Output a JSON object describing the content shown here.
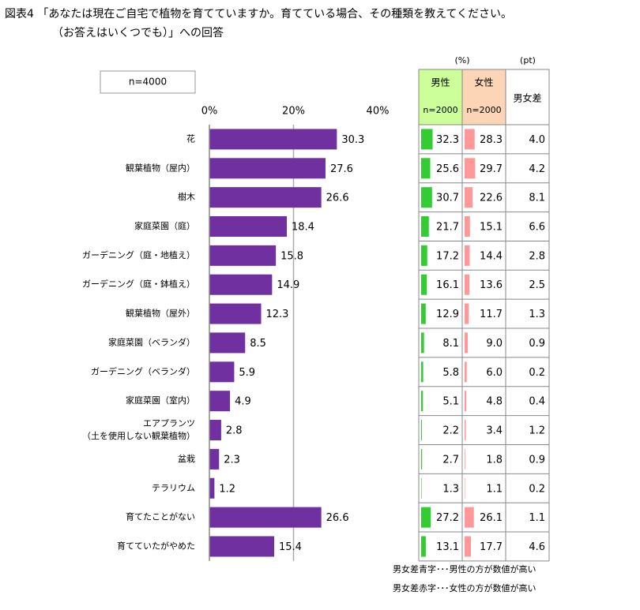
{
  "title": [
    "図表4 「あなたは現在ご自宅で植物を育てていますか。育てている場合、その種類を教えてください。",
    "（お答えはいくつでも）」への回答"
  ],
  "n_label": "n=4000",
  "chart_data": {
    "type": "bar",
    "orientation": "horizontal",
    "categories": [
      "花",
      "観葉植物（屋内）",
      "樹木",
      "家庭菜園（庭）",
      "ガーデニング（庭・地植え）",
      "ガーデニング（庭・鉢植え）",
      "観葉植物（屋外）",
      "家庭菜園（ベランダ）",
      "ガーデニング（ベランダ）",
      "家庭菜園（室内）",
      "エアプランツ\n（土を使用しない観葉植物）",
      "盆栽",
      "テラリウム",
      "育てたことがない",
      "育てていたがやめた"
    ],
    "values": [
      30.3,
      27.6,
      26.6,
      18.4,
      15.8,
      14.9,
      12.3,
      8.5,
      5.9,
      4.9,
      2.8,
      2.3,
      1.2,
      26.6,
      15.4
    ],
    "color": "#7030a0",
    "xlim": [
      0,
      40
    ],
    "xticks": [
      {
        "value": 0,
        "label": "0%"
      },
      {
        "value": 20,
        "label": "20%"
      },
      {
        "value": 40,
        "label": "40%"
      }
    ],
    "grid": true
  },
  "table": {
    "unit_pct": "(%)",
    "unit_pt": "(pt)",
    "columns": [
      {
        "name": "男性",
        "n": "n=2000",
        "color": "#33cc33",
        "bg": "#ccff99",
        "values": [
          32.3,
          25.6,
          30.7,
          21.7,
          17.2,
          16.1,
          12.9,
          8.1,
          5.8,
          5.1,
          2.2,
          2.7,
          1.3,
          27.2,
          13.1
        ],
        "value_labels": [
          "32.3",
          "25.6",
          "30.7",
          "21.7",
          "17.2",
          "16.1",
          "12.9",
          "8.1",
          "5.8",
          "5.1",
          "2.2",
          "2.7",
          "1.3",
          "27.2",
          "13.1"
        ]
      },
      {
        "name": "女性",
        "n": "n=2000",
        "color": "#ff9999",
        "bg": "#fbd5b5",
        "values": [
          28.3,
          29.7,
          22.6,
          15.1,
          14.4,
          13.6,
          11.7,
          9.0,
          6.0,
          4.8,
          3.4,
          1.8,
          1.1,
          26.1,
          17.7
        ],
        "value_labels": [
          "28.3",
          "29.7",
          "22.6",
          "15.1",
          "14.4",
          "13.6",
          "11.7",
          "9.0",
          "6.0",
          "4.8",
          "3.4",
          "1.8",
          "1.1",
          "26.1",
          "17.7"
        ]
      }
    ],
    "diff": {
      "name": "男女差",
      "values": [
        4.0,
        4.2,
        8.1,
        6.6,
        2.8,
        2.5,
        1.3,
        0.9,
        0.2,
        0.4,
        1.2,
        0.9,
        0.2,
        1.1,
        4.6
      ],
      "value_labels": [
        "4.0",
        "4.2",
        "8.1",
        "6.6",
        "2.8",
        "2.5",
        "1.3",
        "0.9",
        "0.2",
        "0.4",
        "1.2",
        "0.9",
        "0.2",
        "1.1",
        "4.6"
      ],
      "colors": [
        "#0070c0",
        "#ff0000",
        "#0070c0",
        "#0070c0",
        "#0070c0",
        "#0070c0",
        "#0070c0",
        "#ff0000",
        "#ff0000",
        "#0070c0",
        "#ff0000",
        "#0070c0",
        "#0070c0",
        "#0070c0",
        "#ff0000"
      ]
    },
    "notes": [
      {
        "text": "男女差青字･･･男性の方が数値が高い",
        "color": "#0070c0"
      },
      {
        "text": "男女差赤字･･･女性の方が数値が高い",
        "color": "#ff0000"
      }
    ]
  }
}
